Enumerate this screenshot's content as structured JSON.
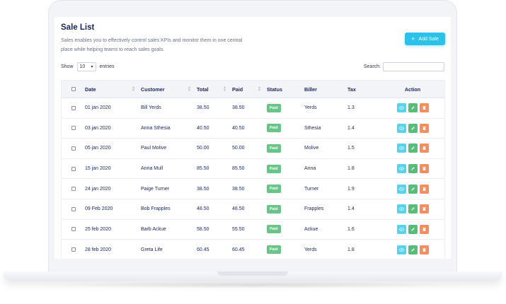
{
  "page": {
    "title": "Sale List",
    "description": "Sales enables you to effectively control sales KPIs and monitor them in one central place while helping teams to reach sales goals.",
    "add_button_label": "Add Sale",
    "add_button_icon": "plus-icon"
  },
  "controls": {
    "show_label": "Show",
    "entries_value": "10",
    "entries_label": "entries",
    "search_label": "Search:",
    "search_value": ""
  },
  "table": {
    "columns": [
      "Date",
      "Customer",
      "Total",
      "Paid",
      "Status",
      "Biller",
      "Tax",
      "Action"
    ],
    "rows": [
      {
        "date": "01 jan 2020",
        "customer": "Bill Yerds",
        "total": "38.50",
        "paid": "38.50",
        "status": "Paid",
        "biller": "Yerds",
        "tax": "1.3"
      },
      {
        "date": "03 jan 2020",
        "customer": "Anna Sthesia",
        "total": "40.50",
        "paid": "40.50",
        "status": "Paid",
        "biller": "Sthesia",
        "tax": "1.4"
      },
      {
        "date": "05 jan 2020",
        "customer": "Paul Molive",
        "total": "50.00",
        "paid": "50.00",
        "status": "Paid",
        "biller": "Molive",
        "tax": "1.5"
      },
      {
        "date": "15 jan 2020",
        "customer": "Anna Mull",
        "total": "85.50",
        "paid": "85.50",
        "status": "Paid",
        "biller": "Anna",
        "tax": "1.8"
      },
      {
        "date": "24 jan 2020",
        "customer": "Paige Turner",
        "total": "38.50",
        "paid": "38.50",
        "status": "Paid",
        "biller": "Turner",
        "tax": "1.9"
      },
      {
        "date": "09 Feb 2020",
        "customer": "Bob Frapples",
        "total": "48.50",
        "paid": "48.50",
        "status": "Paid",
        "biller": "Frapples",
        "tax": "1.4"
      },
      {
        "date": "25 feb 2020",
        "customer": "Barb Ackue",
        "total": "58.50",
        "paid": "55.50",
        "status": "Paid",
        "biller": "Ackue",
        "tax": "1.6"
      },
      {
        "date": "28 feb 2020",
        "customer": "Greta Life",
        "total": "60.45",
        "paid": "60.45",
        "status": "Paid",
        "biller": "Yerds",
        "tax": "1.8"
      }
    ]
  },
  "colors": {
    "accent": "#2bc1e8",
    "title": "#1b2559",
    "paid_badge": "#67c587",
    "view_action": "#55d4ee",
    "edit_action": "#56bd7b",
    "delete_action": "#f78d5c"
  },
  "icons": {
    "view": "eye-icon",
    "edit": "pencil-icon",
    "delete": "trash-icon",
    "sort": "sort-icon"
  }
}
